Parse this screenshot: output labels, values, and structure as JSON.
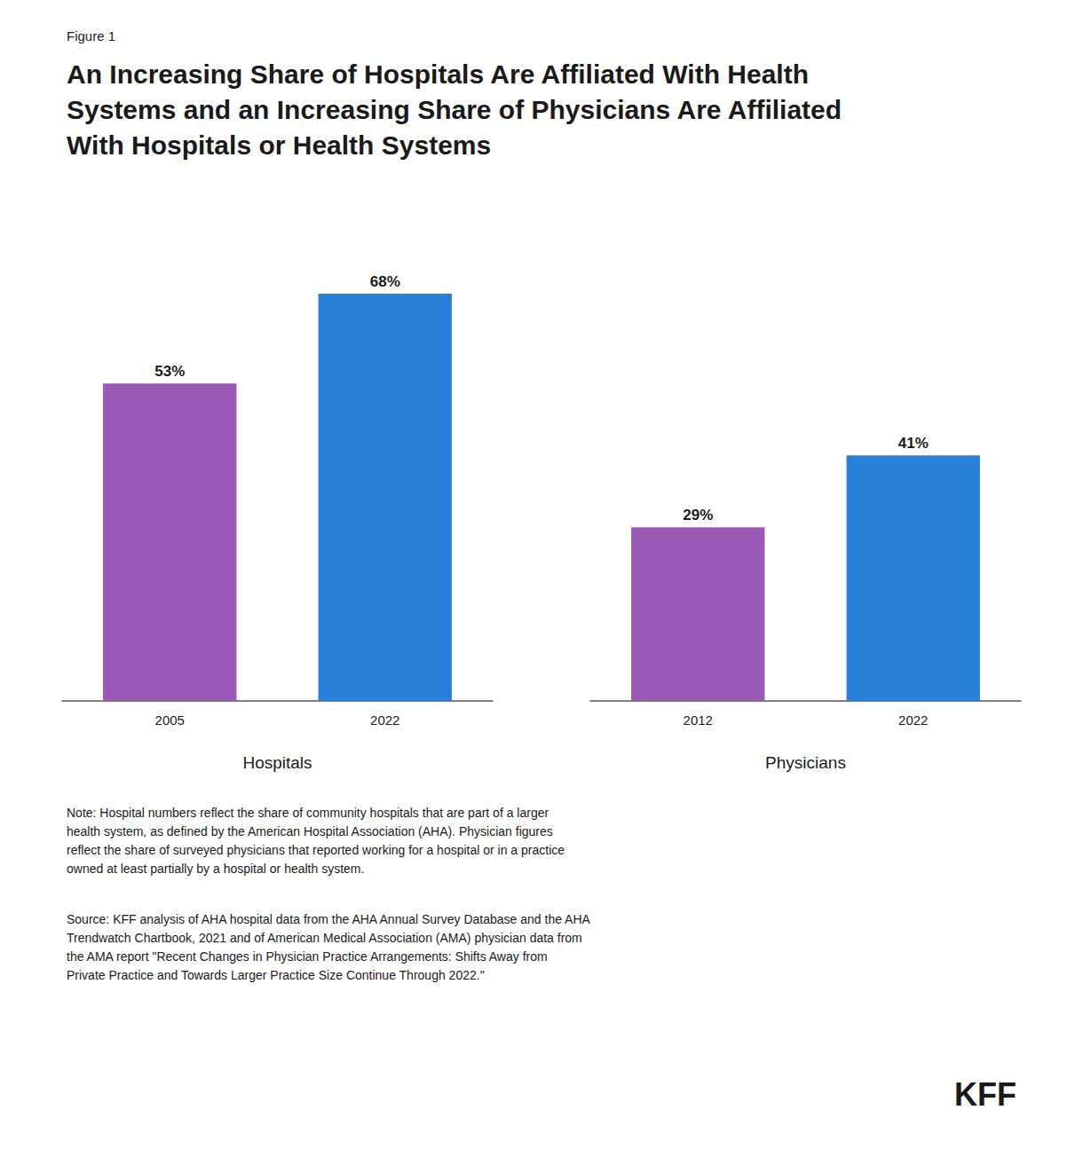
{
  "chart_data": {
    "type": "bar",
    "figure_label": "Figure 1",
    "title": "An Increasing Share of Hospitals Are Affiliated With Health\nSystems and an Increasing Share of Physicians Are Affiliated\nWith Hospitals or Health Systems",
    "categories": [
      "2005",
      "2022",
      "2012",
      "2022"
    ],
    "groups": [
      "Hospitals",
      "Hospitals",
      "Physicians",
      "Physicians"
    ],
    "values": [
      53,
      68,
      29,
      41
    ],
    "value_labels": [
      "53%",
      "68%",
      "29%",
      "41%"
    ],
    "colors": [
      "#9B59B6",
      "#2980D9",
      "#9B59B6",
      "#2980D9"
    ],
    "ylim": [
      0,
      80
    ],
    "grid": false,
    "data_labels": true,
    "tick_labels": "x",
    "note": "Note: Hospital numbers reflect the share of community hospitals that are part of a larger\nhealth system, as defined by the American Hospital Association (AHA). Physician figures\nreflect the share of surveyed physicians that reported working for a hospital or in a practice\nowned at least partially by a hospital or health system.",
    "source": "Source: KFF analysis of AHA hospital data from the AHA Annual Survey Database and the AHA\nTrendwatch Chartbook, 2021 and of American Medical Association (AMA) physician data from\nthe AMA report \"Recent Changes in Physician Practice Arrangements: Shifts Away from\nPrivate Practice and Towards Larger Practice Size Continue Through 2022.\"",
    "logo": "KFF"
  }
}
